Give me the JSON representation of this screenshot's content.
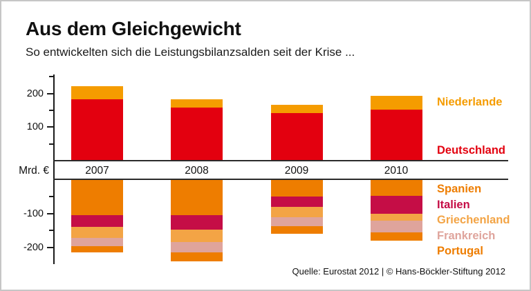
{
  "header": {
    "title": "Aus dem Gleichgewicht",
    "subtitle": "So entwickelten sich die Leistungsbilanzsalden seit der Krise ..."
  },
  "axis": {
    "unit_label": "Mrd. €",
    "major_ticks": [
      200,
      100,
      -100,
      -200
    ],
    "minor_ticks": [
      250,
      150,
      50,
      -50,
      -150
    ],
    "range": [
      -250,
      250
    ]
  },
  "chart_data": {
    "type": "bar",
    "stacked": true,
    "title": "Aus dem Gleichgewicht",
    "subtitle": "So entwickelten sich die Leistungsbilanzsalden seit der Krise ...",
    "ylabel": "Mrd. €",
    "xlabel": "",
    "ylim": [
      -250,
      250
    ],
    "grid": false,
    "legend_position": "right",
    "categories": [
      "2007",
      "2008",
      "2009",
      "2010"
    ],
    "series": [
      {
        "name": "Niederlande",
        "color": "#f59c00",
        "values": [
          40,
          25,
          25,
          40
        ]
      },
      {
        "name": "Deutschland",
        "color": "#e3000f",
        "values": [
          180,
          155,
          140,
          150
        ]
      },
      {
        "name": "Spanien",
        "color": "#ee7d00",
        "values": [
          -105,
          -104,
          -50,
          -48
        ]
      },
      {
        "name": "Italien",
        "color": "#c50d46",
        "values": [
          -35,
          -44,
          -31,
          -53
        ]
      },
      {
        "name": "Griechenland",
        "color": "#f3a445",
        "values": [
          -33,
          -37,
          -29,
          -21
        ]
      },
      {
        "name": "Frankreich",
        "color": "#dfa49c",
        "values": [
          -23,
          -31,
          -28,
          -33
        ]
      },
      {
        "name": "Portugal",
        "color": "#ee7d00",
        "values": [
          -19,
          -26,
          -21,
          -26
        ]
      }
    ]
  },
  "footer": {
    "source": "Quelle: Eurostat 2012 | © Hans-Böckler-Stiftung 2012"
  }
}
